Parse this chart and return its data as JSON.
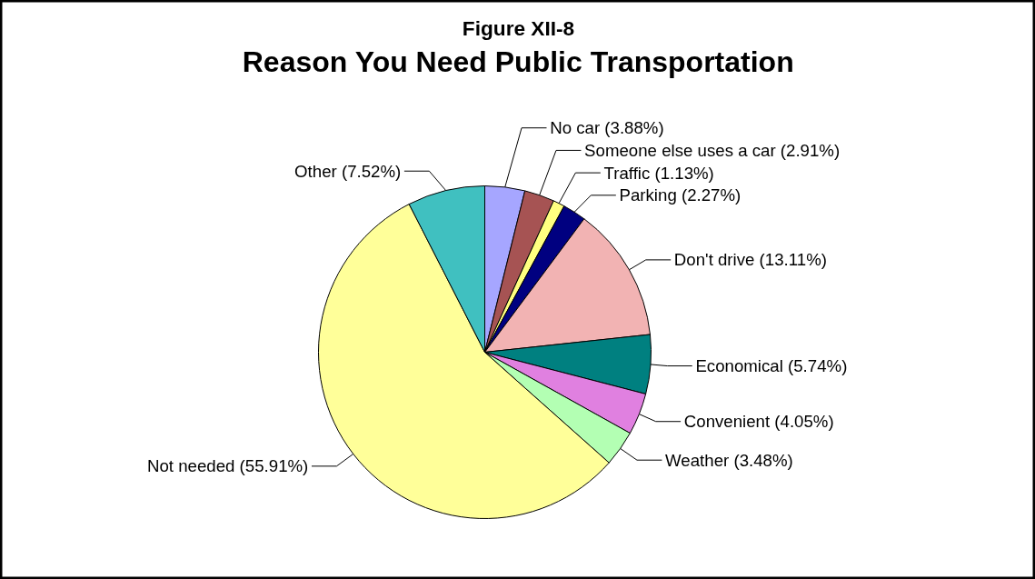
{
  "chart_data": {
    "type": "pie",
    "title": "Reason You Need Public Transportation",
    "subtitle": "Figure XII-8",
    "categories": [
      "No car",
      "Someone else uses a car",
      "Traffic",
      "Parking",
      "Don't drive",
      "Economical",
      "Convenient",
      "Weather",
      "Not needed",
      "Other"
    ],
    "values": [
      3.88,
      2.91,
      1.13,
      2.27,
      13.11,
      5.74,
      4.05,
      3.48,
      55.91,
      7.52
    ],
    "value_labels": [
      "(3.88%)",
      "(2.91%)",
      "(1.13%)",
      "(2.27%)",
      "(13.11%)",
      "(5.74%)",
      "(4.05%)",
      "(3.48%)",
      "(55.91%)",
      "(7.52%)"
    ],
    "colors": [
      "#a6a6ff",
      "#a65353",
      "#ffff80",
      "#000080",
      "#f2b3b3",
      "#008080",
      "#e080e0",
      "#b3ffb3",
      "#ffff99",
      "#40c0c0"
    ]
  }
}
